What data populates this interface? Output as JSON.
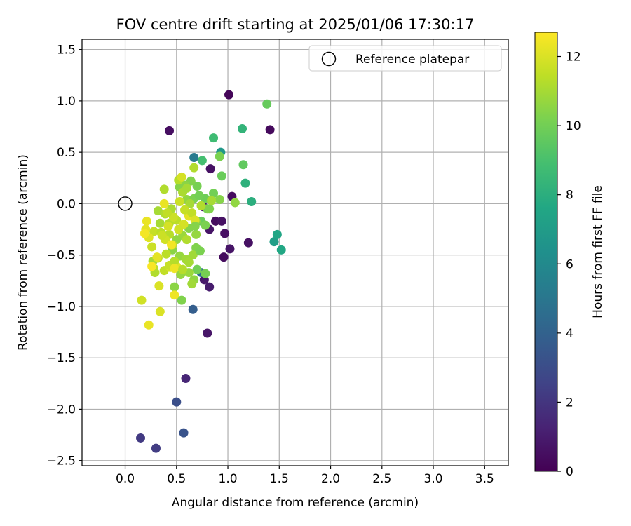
{
  "chart_data": {
    "type": "scatter",
    "title": "FOV centre drift starting at 2025/01/06 17:30:17",
    "xlabel": "Angular distance from reference (arcmin)",
    "ylabel": "Rotation from reference (arcmin)",
    "xlim": [
      -0.42,
      3.73
    ],
    "ylim": [
      -2.55,
      1.6
    ],
    "xticks": [
      0.0,
      0.5,
      1.0,
      1.5,
      2.0,
      2.5,
      3.0,
      3.5
    ],
    "xtick_labels": [
      "0.0",
      "0.5",
      "1.0",
      "1.5",
      "2.0",
      "2.5",
      "3.0",
      "3.5"
    ],
    "yticks": [
      1.5,
      1.0,
      0.5,
      0.0,
      -0.5,
      -1.0,
      -1.5,
      -2.0,
      -2.5
    ],
    "ytick_labels": [
      "1.5",
      "1.0",
      "0.5",
      "0.0",
      "−0.5",
      "−1.0",
      "−1.5",
      "−2.0",
      "−2.5"
    ],
    "grid": true,
    "legend": {
      "position": "top-right",
      "entries": [
        "Reference platepar"
      ]
    },
    "reference_point": {
      "x": 0.0,
      "y": 0.0,
      "label": "Reference platepar"
    },
    "colorbar": {
      "label": "Hours from first FF file",
      "colormap": "viridis",
      "range": [
        0,
        12.7
      ],
      "ticks": [
        0,
        2,
        4,
        6,
        8,
        10,
        12
      ],
      "tick_labels": [
        "0",
        "2",
        "4",
        "6",
        "8",
        "10",
        "12"
      ]
    },
    "points": [
      {
        "x": 1.01,
        "y": 1.06,
        "h": 0.2
      },
      {
        "x": 1.41,
        "y": 0.72,
        "h": 0.3
      },
      {
        "x": 0.43,
        "y": 0.71,
        "h": 0.5
      },
      {
        "x": 0.83,
        "y": 0.34,
        "h": 0.6
      },
      {
        "x": 1.04,
        "y": 0.07,
        "h": 0.4
      },
      {
        "x": 0.76,
        "y": -0.03,
        "h": 0.8
      },
      {
        "x": 0.82,
        "y": -0.25,
        "h": 0.7
      },
      {
        "x": 0.88,
        "y": -0.17,
        "h": 0.4
      },
      {
        "x": 0.94,
        "y": -0.17,
        "h": 0.6
      },
      {
        "x": 0.97,
        "y": -0.29,
        "h": 0.5
      },
      {
        "x": 1.02,
        "y": -0.44,
        "h": 0.7
      },
      {
        "x": 0.96,
        "y": -0.52,
        "h": 0.4
      },
      {
        "x": 1.2,
        "y": -0.38,
        "h": 0.6
      },
      {
        "x": 0.77,
        "y": -0.74,
        "h": 0.9
      },
      {
        "x": 0.82,
        "y": -0.81,
        "h": 1.0
      },
      {
        "x": 0.8,
        "y": -1.26,
        "h": 0.8
      },
      {
        "x": 0.59,
        "y": -1.7,
        "h": 1.4
      },
      {
        "x": 0.15,
        "y": -2.28,
        "h": 2.2
      },
      {
        "x": 0.3,
        "y": -2.38,
        "h": 2.3
      },
      {
        "x": 0.57,
        "y": -2.23,
        "h": 3.3
      },
      {
        "x": 0.5,
        "y": -1.93,
        "h": 3.1
      },
      {
        "x": 0.66,
        "y": -1.03,
        "h": 3.8
      },
      {
        "x": 0.67,
        "y": 0.45,
        "h": 5.2
      },
      {
        "x": 0.74,
        "y": -0.67,
        "h": 4.6
      },
      {
        "x": 0.93,
        "y": 0.5,
        "h": 6.8
      },
      {
        "x": 1.45,
        "y": -0.37,
        "h": 7.1
      },
      {
        "x": 1.48,
        "y": -0.3,
        "h": 7.5
      },
      {
        "x": 1.52,
        "y": -0.45,
        "h": 7.6
      },
      {
        "x": 1.23,
        "y": 0.02,
        "h": 8.0
      },
      {
        "x": 1.17,
        "y": 0.2,
        "h": 8.1
      },
      {
        "x": 1.14,
        "y": 0.73,
        "h": 8.3
      },
      {
        "x": 0.86,
        "y": 0.64,
        "h": 8.7
      },
      {
        "x": 0.75,
        "y": 0.42,
        "h": 8.9
      },
      {
        "x": 1.38,
        "y": 0.97,
        "h": 9.7
      },
      {
        "x": 1.15,
        "y": 0.38,
        "h": 9.6
      },
      {
        "x": 0.94,
        "y": 0.27,
        "h": 9.8
      },
      {
        "x": 0.92,
        "y": 0.46,
        "h": 10.2
      },
      {
        "x": 0.86,
        "y": 0.1,
        "h": 10.0
      },
      {
        "x": 0.78,
        "y": 0.05,
        "h": 9.9
      },
      {
        "x": 0.7,
        "y": 0.17,
        "h": 10.1
      },
      {
        "x": 0.64,
        "y": 0.22,
        "h": 10.3
      },
      {
        "x": 0.58,
        "y": 0.18,
        "h": 10.5
      },
      {
        "x": 0.53,
        "y": 0.16,
        "h": 10.4
      },
      {
        "x": 0.6,
        "y": 0.04,
        "h": 10.6
      },
      {
        "x": 0.67,
        "y": 0.05,
        "h": 10.2
      },
      {
        "x": 0.72,
        "y": 0.08,
        "h": 10.0
      },
      {
        "x": 0.8,
        "y": -0.05,
        "h": 10.1
      },
      {
        "x": 0.74,
        "y": -0.17,
        "h": 9.8
      },
      {
        "x": 0.78,
        "y": -0.21,
        "h": 10.2
      },
      {
        "x": 0.69,
        "y": -0.17,
        "h": 10.5
      },
      {
        "x": 0.62,
        "y": -0.24,
        "h": 10.4
      },
      {
        "x": 0.69,
        "y": -0.3,
        "h": 10.7
      },
      {
        "x": 0.56,
        "y": -0.31,
        "h": 10.8
      },
      {
        "x": 0.5,
        "y": -0.35,
        "h": 10.6
      },
      {
        "x": 0.46,
        "y": -0.45,
        "h": 10.5
      },
      {
        "x": 0.53,
        "y": -0.51,
        "h": 10.7
      },
      {
        "x": 0.59,
        "y": -0.54,
        "h": 10.9
      },
      {
        "x": 0.69,
        "y": -0.43,
        "h": 10.3
      },
      {
        "x": 0.66,
        "y": -0.5,
        "h": 10.9
      },
      {
        "x": 0.7,
        "y": -0.64,
        "h": 10.0
      },
      {
        "x": 0.78,
        "y": -0.68,
        "h": 10.1
      },
      {
        "x": 0.62,
        "y": -0.67,
        "h": 10.8
      },
      {
        "x": 0.54,
        "y": -0.69,
        "h": 10.7
      },
      {
        "x": 0.67,
        "y": -0.74,
        "h": 10.6
      },
      {
        "x": 0.65,
        "y": -0.78,
        "h": 10.9
      },
      {
        "x": 0.48,
        "y": -0.81,
        "h": 10.5
      },
      {
        "x": 0.55,
        "y": -0.94,
        "h": 10.3
      },
      {
        "x": 0.92,
        "y": 0.04,
        "h": 10.4
      },
      {
        "x": 1.07,
        "y": 0.01,
        "h": 10.6
      },
      {
        "x": 0.82,
        "y": -0.05,
        "h": 10.3
      },
      {
        "x": 0.63,
        "y": 0.0,
        "h": 11.0
      },
      {
        "x": 0.56,
        "y": 0.11,
        "h": 11.1
      },
      {
        "x": 0.6,
        "y": 0.15,
        "h": 11.0
      },
      {
        "x": 0.67,
        "y": 0.35,
        "h": 11.2
      },
      {
        "x": 0.52,
        "y": 0.23,
        "h": 11.3
      },
      {
        "x": 0.55,
        "y": 0.26,
        "h": 11.9
      },
      {
        "x": 0.38,
        "y": 0.14,
        "h": 11.2
      },
      {
        "x": 0.45,
        "y": -0.05,
        "h": 11.1
      },
      {
        "x": 0.32,
        "y": -0.07,
        "h": 11.0
      },
      {
        "x": 0.39,
        "y": -0.1,
        "h": 11.2
      },
      {
        "x": 0.43,
        "y": -0.19,
        "h": 11.3
      },
      {
        "x": 0.34,
        "y": -0.19,
        "h": 11.0
      },
      {
        "x": 0.28,
        "y": -0.27,
        "h": 11.6
      },
      {
        "x": 0.35,
        "y": -0.28,
        "h": 11.4
      },
      {
        "x": 0.43,
        "y": -0.3,
        "h": 11.3
      },
      {
        "x": 0.39,
        "y": -0.35,
        "h": 11.8
      },
      {
        "x": 0.46,
        "y": -0.4,
        "h": 11.5
      },
      {
        "x": 0.26,
        "y": -0.42,
        "h": 11.7
      },
      {
        "x": 0.32,
        "y": -0.53,
        "h": 11.6
      },
      {
        "x": 0.27,
        "y": -0.56,
        "h": 11.0
      },
      {
        "x": 0.28,
        "y": -0.63,
        "h": 11.4
      },
      {
        "x": 0.29,
        "y": -0.67,
        "h": 11.2
      },
      {
        "x": 0.38,
        "y": -0.65,
        "h": 11.5
      },
      {
        "x": 0.44,
        "y": -0.62,
        "h": 11.9
      },
      {
        "x": 0.5,
        "y": -0.61,
        "h": 12.1
      },
      {
        "x": 0.43,
        "y": -0.6,
        "h": 11.6
      },
      {
        "x": 0.48,
        "y": -0.56,
        "h": 11.3
      },
      {
        "x": 0.33,
        "y": -0.8,
        "h": 12.0
      },
      {
        "x": 0.16,
        "y": -0.94,
        "h": 11.8
      },
      {
        "x": 0.34,
        "y": -1.05,
        "h": 12.0
      },
      {
        "x": 0.23,
        "y": -1.18,
        "h": 12.3
      },
      {
        "x": 0.48,
        "y": -0.89,
        "h": 12.4
      },
      {
        "x": 0.2,
        "y": -0.25,
        "h": 12.2
      },
      {
        "x": 0.21,
        "y": -0.17,
        "h": 12.3
      },
      {
        "x": 0.23,
        "y": -0.33,
        "h": 12.1
      },
      {
        "x": 0.19,
        "y": -0.29,
        "h": 12.5
      },
      {
        "x": 0.26,
        "y": -0.61,
        "h": 12.6
      },
      {
        "x": 0.48,
        "y": -0.63,
        "h": 12.4
      },
      {
        "x": 0.45,
        "y": -0.4,
        "h": 12.5
      },
      {
        "x": 0.38,
        "y": 0.0,
        "h": 12.3
      },
      {
        "x": 0.62,
        "y": -0.12,
        "h": 12.2
      },
      {
        "x": 0.53,
        "y": 0.02,
        "h": 11.7
      },
      {
        "x": 0.58,
        "y": -0.06,
        "h": 11.6
      },
      {
        "x": 0.65,
        "y": -0.09,
        "h": 11.5
      },
      {
        "x": 0.5,
        "y": -0.16,
        "h": 11.4
      },
      {
        "x": 0.57,
        "y": -0.2,
        "h": 11.9
      },
      {
        "x": 0.52,
        "y": -0.25,
        "h": 11.8
      },
      {
        "x": 0.68,
        "y": -0.16,
        "h": 12.0
      },
      {
        "x": 0.42,
        "y": -0.22,
        "h": 11.9
      },
      {
        "x": 0.47,
        "y": -0.13,
        "h": 11.7
      },
      {
        "x": 0.41,
        "y": -0.09,
        "h": 11.5
      },
      {
        "x": 0.6,
        "y": -0.35,
        "h": 11.2
      },
      {
        "x": 0.4,
        "y": -0.49,
        "h": 11.4
      },
      {
        "x": 0.31,
        "y": -0.52,
        "h": 12.2
      },
      {
        "x": 0.36,
        "y": -0.31,
        "h": 11.7
      },
      {
        "x": 0.68,
        "y": -0.22,
        "h": 10.4
      },
      {
        "x": 0.73,
        "y": -0.46,
        "h": 10.2
      },
      {
        "x": 0.62,
        "y": -0.57,
        "h": 11.0
      },
      {
        "x": 0.56,
        "y": -0.64,
        "h": 11.3
      },
      {
        "x": 0.74,
        "y": -0.02,
        "h": 11.2
      },
      {
        "x": 0.84,
        "y": 0.03,
        "h": 11.0
      }
    ]
  }
}
